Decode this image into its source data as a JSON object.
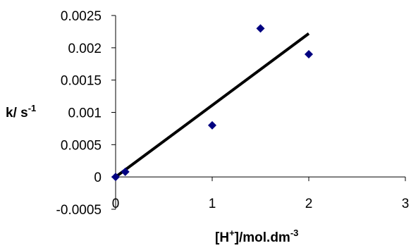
{
  "chart_data": {
    "type": "scatter",
    "xlabel": {
      "base": "[H",
      "sup1": "+",
      "mid": "]/mol.dm",
      "sup2": "-3"
    },
    "ylabel": {
      "base": "k/ s",
      "sup": "-1"
    },
    "xlim": [
      0,
      3
    ],
    "ylim": [
      -0.0005,
      0.0025
    ],
    "x_ticks": [
      0,
      1,
      2,
      3
    ],
    "x_tick_labels": [
      "0",
      "1",
      "2",
      "3"
    ],
    "y_ticks": [
      -0.0005,
      0,
      0.0005,
      0.001,
      0.0015,
      0.002,
      0.0025
    ],
    "y_tick_labels": [
      "-0.0005",
      "0",
      "0.0005",
      "0.001",
      "0.0015",
      "0.002",
      "0.0025"
    ],
    "grid": false,
    "legend": "none",
    "series": [
      {
        "marker": "diamond",
        "color": "#000080",
        "points": [
          {
            "x": 0,
            "y": 0
          },
          {
            "x": 0.1,
            "y": 8e-05
          },
          {
            "x": 1,
            "y": 0.0008
          },
          {
            "x": 1.5,
            "y": 0.0023
          },
          {
            "x": 2,
            "y": 0.0019
          }
        ]
      }
    ],
    "trendline": {
      "color": "#000000",
      "from": {
        "x": 0,
        "y": 0
      },
      "to": {
        "x": 2,
        "y": 0.00222
      }
    }
  }
}
